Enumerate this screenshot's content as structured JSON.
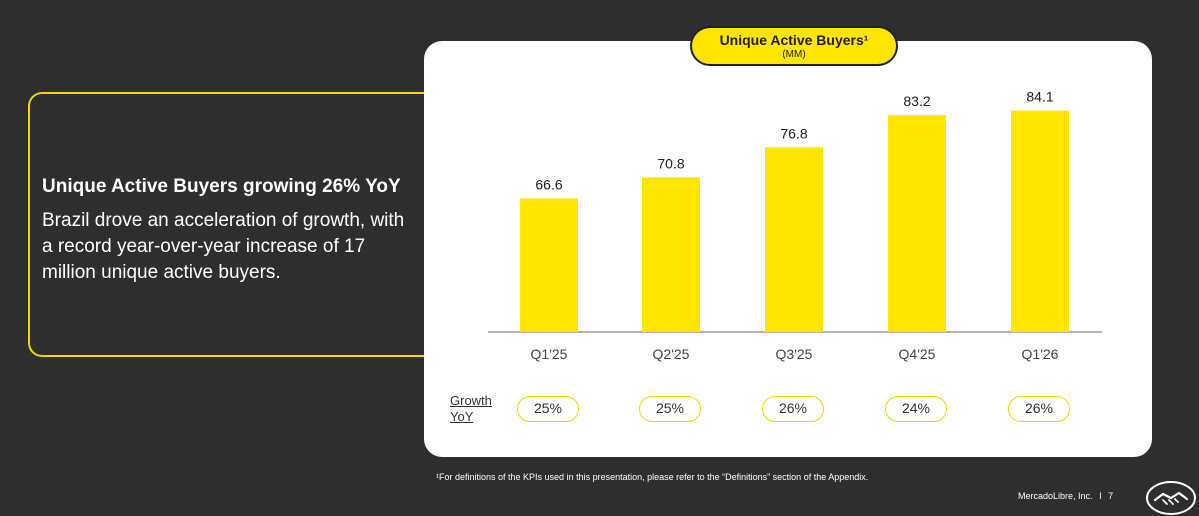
{
  "callout": {
    "title": "Unique Active Buyers growing 26% YoY",
    "body": "Brazil drove an acceleration of growth, with a record year-over-year increase of 17 million unique active buyers."
  },
  "chart_title": {
    "main": "Unique Active Buyers¹",
    "unit": "(MM)"
  },
  "chart_data": {
    "type": "bar",
    "title": "Unique Active Buyers¹",
    "subtitle": "(MM)",
    "categories": [
      "Q1'25",
      "Q2'25",
      "Q3'25",
      "Q4'25",
      "Q1'26"
    ],
    "values": [
      66.6,
      70.8,
      76.8,
      83.2,
      84.1
    ],
    "value_labels": [
      "66.6",
      "70.8",
      "76.8",
      "83.2",
      "84.1"
    ],
    "ylim": [
      40,
      90
    ],
    "grid": false,
    "bar_color": "#ffe600"
  },
  "growth": {
    "label_line1": "Growth",
    "label_line2": "YoY",
    "values": [
      "25%",
      "25%",
      "26%",
      "24%",
      "26%"
    ]
  },
  "footnote": "¹For definitions of the KPIs used in this presentation, please refer to the “Definitions” section of the Appendix.",
  "footer": {
    "brand": "MercadoLibre, Inc.",
    "separator": "I",
    "page": "7"
  },
  "colors": {
    "background": "#2e2e2e",
    "accent": "#ffe600",
    "outline": "#f3d500",
    "card": "#ffffff"
  },
  "logo_icon": "handshake-logo-icon"
}
